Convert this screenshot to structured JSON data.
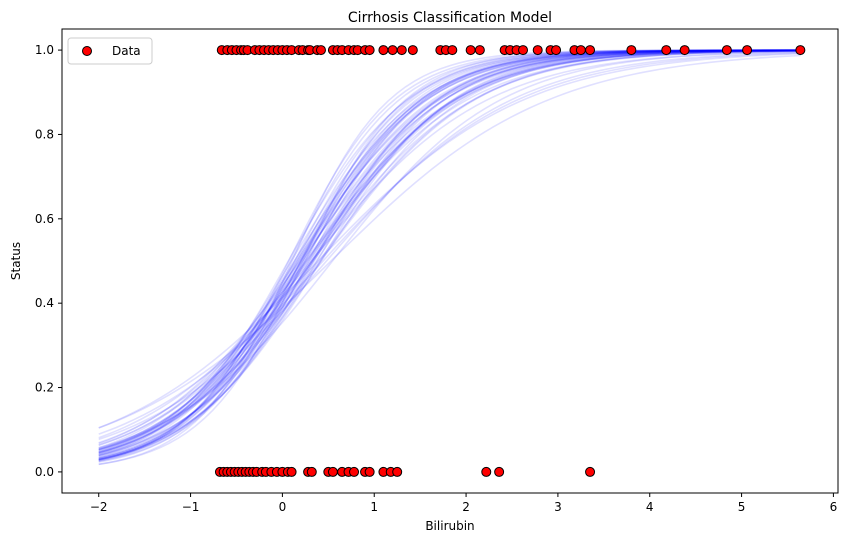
{
  "chart_data": {
    "type": "scatter",
    "title": "Cirrhosis Classification Model",
    "xlabel": "Bilirubin",
    "ylabel": "Status",
    "xlim": [
      -2.4,
      6.05
    ],
    "ylim": [
      -0.05,
      1.05
    ],
    "x_ticks": [
      -2,
      -1,
      0,
      1,
      2,
      3,
      4,
      5,
      6
    ],
    "y_ticks": [
      0.0,
      0.2,
      0.4,
      0.6,
      0.8,
      1.0
    ],
    "x_tick_labels": [
      "−2",
      "−1",
      "0",
      "1",
      "2",
      "3",
      "4",
      "5",
      "6"
    ],
    "y_tick_labels": [
      "0.0",
      "0.2",
      "0.4",
      "0.6",
      "0.8",
      "1.0"
    ],
    "grid": false,
    "legend": {
      "placement": "top-left",
      "entries": [
        "Data"
      ]
    },
    "colors": {
      "points_fill": "#ff0000",
      "points_edge": "#000000",
      "curves": "#0000ff"
    },
    "curve_x_range": [
      -2.0,
      5.64
    ],
    "series": [
      {
        "name": "Data",
        "kind": "scatter",
        "x": [
          -0.66,
          -0.6,
          -0.55,
          -0.5,
          -0.45,
          -0.42,
          -0.38,
          -0.3,
          -0.25,
          -0.2,
          -0.15,
          -0.1,
          -0.05,
          0.0,
          0.05,
          0.1,
          0.18,
          0.22,
          0.28,
          0.3,
          0.38,
          0.42,
          0.55,
          0.6,
          0.65,
          0.72,
          0.78,
          0.82,
          0.9,
          0.95,
          1.1,
          1.2,
          1.3,
          1.42,
          1.72,
          1.78,
          1.85,
          2.05,
          2.15,
          2.42,
          2.48,
          2.55,
          2.62,
          2.78,
          2.92,
          2.98,
          3.18,
          3.25,
          3.35,
          3.8,
          4.18,
          4.38,
          4.84,
          5.06,
          5.64,
          -0.68,
          -0.64,
          -0.6,
          -0.56,
          -0.52,
          -0.48,
          -0.44,
          -0.4,
          -0.36,
          -0.32,
          -0.28,
          -0.22,
          -0.18,
          -0.12,
          -0.06,
          0.0,
          0.06,
          0.1,
          0.28,
          0.32,
          0.5,
          0.55,
          0.65,
          0.72,
          0.78,
          0.9,
          0.95,
          1.1,
          1.18,
          1.25,
          2.22,
          2.36,
          3.35
        ],
        "y": [
          1,
          1,
          1,
          1,
          1,
          1,
          1,
          1,
          1,
          1,
          1,
          1,
          1,
          1,
          1,
          1,
          1,
          1,
          1,
          1,
          1,
          1,
          1,
          1,
          1,
          1,
          1,
          1,
          1,
          1,
          1,
          1,
          1,
          1,
          1,
          1,
          1,
          1,
          1,
          1,
          1,
          1,
          1,
          1,
          1,
          1,
          1,
          1,
          1,
          1,
          1,
          1,
          1,
          1,
          1,
          0,
          0,
          0,
          0,
          0,
          0,
          0,
          0,
          0,
          0,
          0,
          0,
          0,
          0,
          0,
          0,
          0,
          0,
          0,
          0,
          0,
          0,
          0,
          0,
          0,
          0,
          0,
          0,
          0,
          0,
          0,
          0,
          0
        ]
      },
      {
        "name": "",
        "kind": "curves",
        "description_params": "logistic curves p = 1/(1+exp(-(a + b*x)))",
        "a": [
          -0.55,
          -0.45,
          -0.35,
          -0.25,
          -0.15,
          -0.5,
          -0.4,
          -0.3,
          -0.2,
          -0.1,
          -0.6,
          -0.38,
          -0.28,
          -0.18,
          -0.48,
          -0.33,
          -0.23,
          -0.42,
          -0.36,
          -0.26,
          -0.52,
          -0.46,
          -0.32,
          -0.22,
          -0.12,
          -0.58,
          -0.44,
          -0.34,
          -0.24,
          -0.14,
          -0.5,
          -0.4,
          -0.3,
          -0.2,
          -0.45,
          -0.35,
          -0.55,
          -0.25,
          -0.38,
          -0.28,
          -0.48,
          -0.42,
          -0.36,
          -0.3,
          -0.34,
          -0.4,
          -0.2,
          -0.5,
          -0.44,
          -0.32
        ],
        "b": [
          1.3,
          1.4,
          1.5,
          1.6,
          1.7,
          1.2,
          1.25,
          1.35,
          1.45,
          1.55,
          1.1,
          1.15,
          1.3,
          1.4,
          1.0,
          1.05,
          1.2,
          0.95,
          1.35,
          1.45,
          1.5,
          1.6,
          1.55,
          1.65,
          1.75,
          1.4,
          1.3,
          1.25,
          1.35,
          1.45,
          1.5,
          1.6,
          1.2,
          1.3,
          0.85,
          0.9,
          1.45,
          1.5,
          1.55,
          1.4,
          1.2,
          1.3,
          1.25,
          1.15,
          1.7,
          1.8,
          1.9,
          1.35,
          1.45,
          1.6
        ]
      }
    ]
  }
}
